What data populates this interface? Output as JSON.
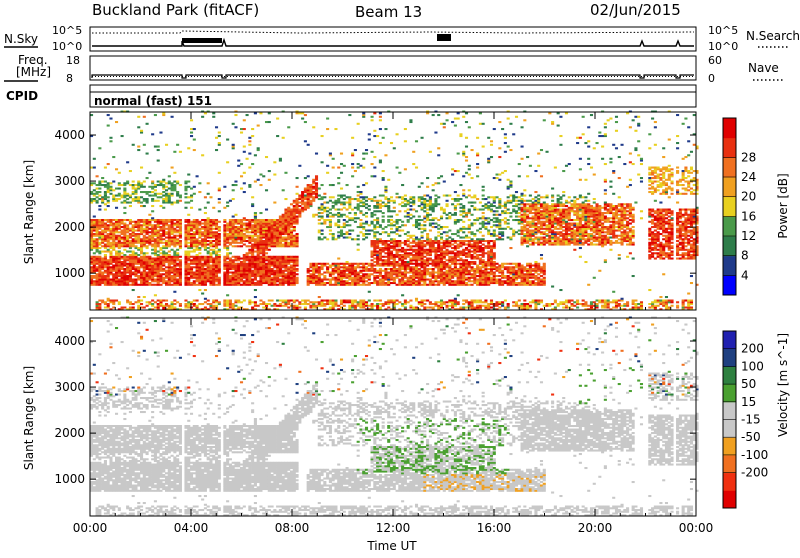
{
  "header": {
    "site": "Buckland Park (fitACF)",
    "beam": "Beam 13",
    "date": "02/Jun/2015"
  },
  "strips": {
    "nsky_label": "N.Sky",
    "nsky_ticks": [
      "10^5",
      "10^0"
    ],
    "nsearch_label": "N.Search",
    "nsearch_ticks": [
      "10^5",
      "10^0"
    ],
    "freq_label_1": "Freq.",
    "freq_label_2": "[MHz]",
    "freq_ticks": [
      "18",
      "8"
    ],
    "nave_label": "Nave",
    "nave_ticks": [
      "60",
      "0"
    ],
    "cpid_label": "CPID",
    "cpid_value": "normal (fast) 151"
  },
  "colors": {
    "power_scale": [
      "#0000ff",
      "#1f3a8a",
      "#2e7d4a",
      "#4a9a4a",
      "#e8d020",
      "#f0a020",
      "#f07020",
      "#e83010",
      "#e00000"
    ],
    "velocity_scale": [
      "#e00000",
      "#f03010",
      "#f07020",
      "#f0a020",
      "#c8c8c8",
      "#c8c8c8",
      "#4aa030",
      "#2e8040",
      "#1f4080",
      "#2020b0"
    ]
  },
  "chart_data": [
    {
      "type": "heatmap",
      "panel": "power",
      "ylabel": "Slant Range [km]",
      "y_ticks": [
        "1000",
        "2000",
        "3000",
        "4000"
      ],
      "ylim": [
        200,
        4500
      ],
      "x_ticks": [
        "00:00",
        "04:00",
        "08:00",
        "12:00",
        "16:00",
        "20:00",
        "00:00"
      ],
      "xlim": [
        0,
        24
      ],
      "colorbar_label": "Power [dB]",
      "colorbar_ticks": [
        "4",
        "8",
        "12",
        "16",
        "20",
        "24",
        "28"
      ],
      "colorbar_range": [
        0,
        30
      ]
    },
    {
      "type": "heatmap",
      "panel": "velocity",
      "ylabel": "Slant Range [km]",
      "y_ticks": [
        "1000",
        "2000",
        "3000",
        "4000"
      ],
      "ylim": [
        200,
        4500
      ],
      "x_ticks": [
        "00:00",
        "04:00",
        "08:00",
        "12:00",
        "16:00",
        "20:00",
        "00:00"
      ],
      "xlim": [
        0,
        24
      ],
      "xlabel": "Time UT",
      "colorbar_label": "Velocity [m s^-1]",
      "colorbar_ticks": [
        "200",
        "100",
        "50",
        "15",
        "-15",
        "-50",
        "-100",
        "-200"
      ],
      "colorbar_range": [
        -250,
        250
      ]
    }
  ]
}
